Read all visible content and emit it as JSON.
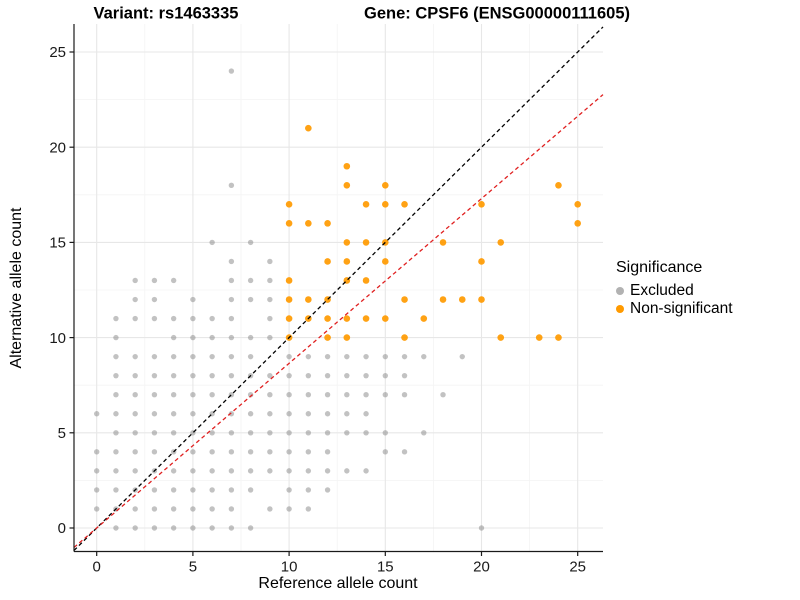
{
  "titles": {
    "variant": "Variant: rs1463335",
    "gene": "Gene: CPSF6 (ENSG00000111605)"
  },
  "legend": {
    "title": "Significance",
    "items": [
      {
        "label": "Excluded",
        "color": "#b2b2b2"
      },
      {
        "label": "Non-significant",
        "color": "#ff9a00"
      }
    ]
  },
  "colors": {
    "background": "#ffffff",
    "grid_major": "#e7e7e7",
    "grid_minor": "#f4f4f4",
    "axis": "#1a1a1a",
    "excluded_point": "#8f8f8f",
    "non_significant_point": "#ff9a00",
    "identity_line": "#000000",
    "ratio_line": "#e02020"
  },
  "chart_data": {
    "type": "scatter",
    "xlabel": "Reference allele count",
    "ylabel": "Alternative allele count",
    "xlim": [
      -1.2,
      26.3
    ],
    "ylim": [
      -1.2,
      26.5
    ],
    "x_ticks": [
      0,
      5,
      10,
      15,
      20,
      25
    ],
    "y_ticks": [
      0,
      5,
      10,
      15,
      20,
      25
    ],
    "x_minor_ticks": [
      2.5,
      7.5,
      12.5,
      17.5,
      22.5
    ],
    "y_minor_ticks": [
      2.5,
      7.5,
      12.5,
      17.5,
      22.5
    ],
    "grid": "on",
    "legend_position": "right",
    "ref_lines": [
      {
        "name": "identity",
        "slope": 1,
        "intercept": 0,
        "color": "#000000",
        "dash": "4 3"
      },
      {
        "name": "expected-ratio",
        "slope": 0.865,
        "intercept": 0,
        "color": "#e02020",
        "dash": "4 3"
      }
    ],
    "series": [
      {
        "name": "Excluded",
        "color": "#8f8f8f",
        "opacity": 0.55,
        "radius": 2.7,
        "points": [
          [
            1,
            0
          ],
          [
            2,
            0
          ],
          [
            3,
            0
          ],
          [
            4,
            0
          ],
          [
            5,
            0
          ],
          [
            6,
            0
          ],
          [
            7,
            0
          ],
          [
            8,
            0
          ],
          [
            20,
            0
          ],
          [
            0,
            1
          ],
          [
            1,
            1
          ],
          [
            2,
            1
          ],
          [
            3,
            1
          ],
          [
            4,
            1
          ],
          [
            5,
            1
          ],
          [
            6,
            1
          ],
          [
            7,
            1
          ],
          [
            9,
            1
          ],
          [
            10,
            1
          ],
          [
            11,
            1
          ],
          [
            0,
            2
          ],
          [
            1,
            2
          ],
          [
            2,
            2
          ],
          [
            3,
            2
          ],
          [
            4,
            2
          ],
          [
            5,
            2
          ],
          [
            6,
            2
          ],
          [
            7,
            2
          ],
          [
            8,
            2
          ],
          [
            10,
            2
          ],
          [
            11,
            2
          ],
          [
            12,
            2
          ],
          [
            0,
            3
          ],
          [
            1,
            3
          ],
          [
            2,
            3
          ],
          [
            3,
            3
          ],
          [
            4,
            3
          ],
          [
            5,
            3
          ],
          [
            6,
            3
          ],
          [
            7,
            3
          ],
          [
            8,
            3
          ],
          [
            9,
            3
          ],
          [
            10,
            3
          ],
          [
            11,
            3
          ],
          [
            12,
            3
          ],
          [
            13,
            3
          ],
          [
            14,
            3
          ],
          [
            0,
            4
          ],
          [
            1,
            4
          ],
          [
            2,
            4
          ],
          [
            3,
            4
          ],
          [
            4,
            4
          ],
          [
            5,
            4
          ],
          [
            6,
            4
          ],
          [
            7,
            4
          ],
          [
            8,
            4
          ],
          [
            9,
            4
          ],
          [
            10,
            4
          ],
          [
            11,
            4
          ],
          [
            12,
            4
          ],
          [
            15,
            4
          ],
          [
            16,
            4
          ],
          [
            1,
            5
          ],
          [
            2,
            5
          ],
          [
            3,
            5
          ],
          [
            4,
            5
          ],
          [
            5,
            5
          ],
          [
            6,
            5
          ],
          [
            7,
            5
          ],
          [
            8,
            5
          ],
          [
            9,
            5
          ],
          [
            10,
            5
          ],
          [
            11,
            5
          ],
          [
            12,
            5
          ],
          [
            13,
            5
          ],
          [
            14,
            5
          ],
          [
            15,
            5
          ],
          [
            17,
            5
          ],
          [
            0,
            6
          ],
          [
            1,
            6
          ],
          [
            2,
            6
          ],
          [
            3,
            6
          ],
          [
            4,
            6
          ],
          [
            5,
            6
          ],
          [
            6,
            6
          ],
          [
            7,
            6
          ],
          [
            8,
            6
          ],
          [
            9,
            6
          ],
          [
            10,
            6
          ],
          [
            11,
            6
          ],
          [
            12,
            6
          ],
          [
            13,
            6
          ],
          [
            14,
            6
          ],
          [
            1,
            7
          ],
          [
            2,
            7
          ],
          [
            3,
            7
          ],
          [
            4,
            7
          ],
          [
            5,
            7
          ],
          [
            6,
            7
          ],
          [
            7,
            7
          ],
          [
            8,
            7
          ],
          [
            9,
            7
          ],
          [
            10,
            7
          ],
          [
            11,
            7
          ],
          [
            12,
            7
          ],
          [
            13,
            7
          ],
          [
            14,
            7
          ],
          [
            15,
            7
          ],
          [
            16,
            7
          ],
          [
            18,
            7
          ],
          [
            1,
            8
          ],
          [
            2,
            8
          ],
          [
            3,
            8
          ],
          [
            4,
            8
          ],
          [
            5,
            8
          ],
          [
            6,
            8
          ],
          [
            7,
            8
          ],
          [
            8,
            8
          ],
          [
            9,
            8
          ],
          [
            10,
            8
          ],
          [
            11,
            8
          ],
          [
            12,
            8
          ],
          [
            13,
            8
          ],
          [
            14,
            8
          ],
          [
            15,
            8
          ],
          [
            16,
            8
          ],
          [
            1,
            9
          ],
          [
            2,
            9
          ],
          [
            3,
            9
          ],
          [
            4,
            9
          ],
          [
            5,
            9
          ],
          [
            6,
            9
          ],
          [
            7,
            9
          ],
          [
            8,
            9
          ],
          [
            10,
            9
          ],
          [
            11,
            9
          ],
          [
            12,
            9
          ],
          [
            13,
            9
          ],
          [
            14,
            9
          ],
          [
            15,
            9
          ],
          [
            16,
            9
          ],
          [
            17,
            9
          ],
          [
            19,
            9
          ],
          [
            1,
            10
          ],
          [
            4,
            10
          ],
          [
            5,
            10
          ],
          [
            6,
            10
          ],
          [
            7,
            10
          ],
          [
            8,
            10
          ],
          [
            9,
            10
          ],
          [
            1,
            11
          ],
          [
            2,
            11
          ],
          [
            3,
            11
          ],
          [
            4,
            11
          ],
          [
            5,
            11
          ],
          [
            6,
            11
          ],
          [
            7,
            11
          ],
          [
            9,
            11
          ],
          [
            2,
            12
          ],
          [
            3,
            12
          ],
          [
            5,
            12
          ],
          [
            7,
            12
          ],
          [
            8,
            12
          ],
          [
            9,
            12
          ],
          [
            2,
            13
          ],
          [
            3,
            13
          ],
          [
            4,
            13
          ],
          [
            7,
            13
          ],
          [
            8,
            13
          ],
          [
            9,
            13
          ],
          [
            7,
            14
          ],
          [
            9,
            14
          ],
          [
            6,
            15
          ],
          [
            8,
            15
          ],
          [
            7,
            18
          ],
          [
            7,
            24
          ]
        ]
      },
      {
        "name": "Non-significant",
        "color": "#ff9a00",
        "opacity": 0.92,
        "radius": 3.3,
        "points": [
          [
            10,
            10
          ],
          [
            12,
            10
          ],
          [
            13,
            10
          ],
          [
            16,
            10
          ],
          [
            21,
            10
          ],
          [
            23,
            10
          ],
          [
            24,
            10
          ],
          [
            10,
            11
          ],
          [
            11,
            11
          ],
          [
            12,
            11
          ],
          [
            13,
            11
          ],
          [
            14,
            11
          ],
          [
            15,
            11
          ],
          [
            17,
            11
          ],
          [
            10,
            12
          ],
          [
            11,
            12
          ],
          [
            12,
            12
          ],
          [
            16,
            12
          ],
          [
            18,
            12
          ],
          [
            19,
            12
          ],
          [
            20,
            12
          ],
          [
            10,
            13
          ],
          [
            13,
            13
          ],
          [
            14,
            13
          ],
          [
            12,
            14
          ],
          [
            13,
            14
          ],
          [
            15,
            14
          ],
          [
            20,
            14
          ],
          [
            13,
            15
          ],
          [
            14,
            15
          ],
          [
            15,
            15
          ],
          [
            18,
            15
          ],
          [
            21,
            15
          ],
          [
            10,
            16
          ],
          [
            11,
            16
          ],
          [
            12,
            16
          ],
          [
            25,
            16
          ],
          [
            10,
            17
          ],
          [
            14,
            17
          ],
          [
            15,
            17
          ],
          [
            16,
            17
          ],
          [
            20,
            17
          ],
          [
            25,
            17
          ],
          [
            13,
            18
          ],
          [
            15,
            18
          ],
          [
            24,
            18
          ],
          [
            13,
            19
          ],
          [
            11,
            21
          ]
        ]
      }
    ]
  }
}
